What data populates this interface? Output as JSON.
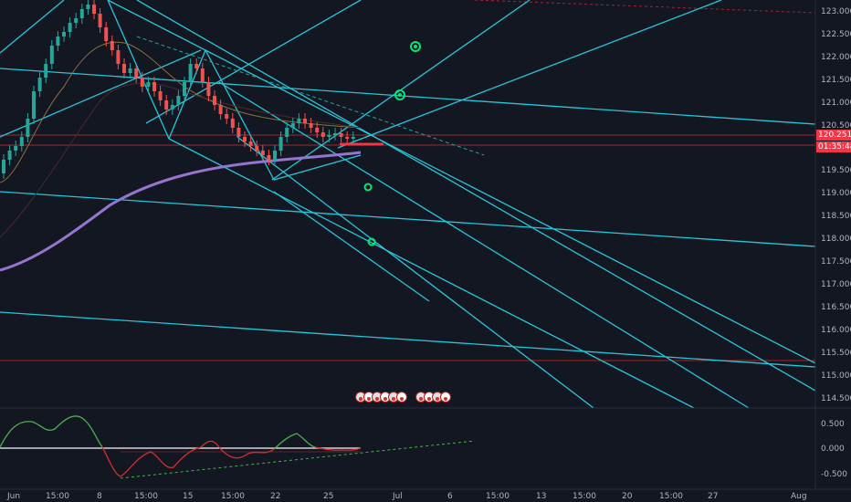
{
  "price_axis": {
    "labels": [
      "123.000",
      "122.500",
      "122.000",
      "121.500",
      "121.000",
      "120.500",
      "119.500",
      "119.000",
      "118.500",
      "118.000",
      "117.500",
      "117.000",
      "116.500",
      "116.000",
      "115.500",
      "115.000",
      "114.500"
    ]
  },
  "last_price": {
    "value": "120.251",
    "countdown": "01:35:48",
    "color": "#f23645"
  },
  "oscillator_axis": {
    "labels": [
      "0.500",
      "0.000",
      "-0.500"
    ]
  },
  "time_axis": {
    "labels": [
      "Jun",
      "15:00",
      "8",
      "15:00",
      "15",
      "15:00",
      "22",
      "25",
      "Jul",
      "6",
      "15:00",
      "13",
      "15:00",
      "20",
      "15:00",
      "27",
      "Aug"
    ]
  },
  "event_markers": {
    "count": 10
  },
  "colors": {
    "background": "#131722",
    "channel_lines": "#26c6da",
    "moving_average": "#9575cd",
    "bull_candle": "#26a69a",
    "bear_candle": "#ef5350",
    "signal_marker": "#00e676",
    "oscillator_up": "#4caf50",
    "oscillator_down": "#d32f2f"
  }
}
